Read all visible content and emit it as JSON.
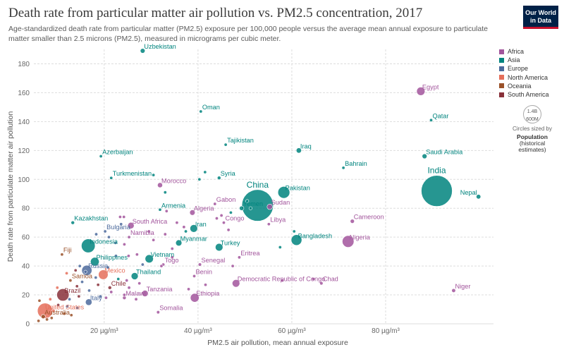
{
  "header": {
    "title": "Death rate from particular matter air pollution vs. PM2.5 concentration, 2017",
    "subtitle": "Age-standardized death rate from particular matter (PM2.5) exposure per 100,000 people versus the average mean annual exposure to particulate matter smaller than 2.5 microns (PM2.5), measured in micrograms per cubic meter.",
    "logo_line1": "Our World",
    "logo_line2": "in Data"
  },
  "legend": {
    "items": [
      {
        "label": "Africa",
        "color": "#a2559c"
      },
      {
        "label": "Asia",
        "color": "#00847e"
      },
      {
        "label": "Europe",
        "color": "#4c6a9c"
      },
      {
        "label": "North America",
        "color": "#e56e5a"
      },
      {
        "label": "Oceania",
        "color": "#9a5129"
      },
      {
        "label": "South America",
        "color": "#883039"
      }
    ],
    "size_circle_label": "1.4B",
    "size_circle_sub": "600M",
    "size_note": "Circles sized by",
    "size_pop1": "Population",
    "size_pop2": "(historical estimates)"
  },
  "chart_data": {
    "type": "scatter",
    "title": "Death rate from particular matter air pollution vs. PM2.5 concentration, 2017",
    "xlabel": "PM2.5 air pollution, mean annual exposure",
    "ylabel": "Death rate from particulate matter air pollution",
    "xlim": [
      5,
      103
    ],
    "ylim": [
      0,
      190
    ],
    "x_ticks": [
      {
        "v": 20,
        "label": "20 µg/m³"
      },
      {
        "v": 40,
        "label": "40 µg/m³"
      },
      {
        "v": 60,
        "label": "60 µg/m³"
      },
      {
        "v": 80,
        "label": "80 µg/m³"
      }
    ],
    "y_ticks": [
      0,
      20,
      40,
      60,
      80,
      100,
      120,
      140,
      160,
      180
    ],
    "grid": true,
    "legend_position": "right",
    "points": [
      {
        "label": "Uzbekistan",
        "x": 28.2,
        "y": 189,
        "c": "Asia",
        "pop": 32
      },
      {
        "label": "Egypt",
        "x": 87.5,
        "y": 161,
        "c": "Africa",
        "pop": 97
      },
      {
        "label": "Oman",
        "x": 40.6,
        "y": 147,
        "c": "Asia",
        "pop": 4.6
      },
      {
        "label": "Qatar",
        "x": 89.7,
        "y": 141,
        "c": "Asia",
        "pop": 2.6
      },
      {
        "label": "Tajikistan",
        "x": 45.9,
        "y": 124,
        "c": "Asia",
        "pop": 8.9
      },
      {
        "label": "Iraq",
        "x": 61.5,
        "y": 120,
        "c": "Asia",
        "pop": 38
      },
      {
        "label": "Saudi Arabia",
        "x": 88.3,
        "y": 116,
        "c": "Asia",
        "pop": 33
      },
      {
        "label": "Azerbaijan",
        "x": 19.3,
        "y": 116,
        "c": "Asia",
        "pop": 9.9
      },
      {
        "label": "Bahrain",
        "x": 71.0,
        "y": 108,
        "c": "Asia",
        "pop": 1.5
      },
      {
        "label": "Turkmenistan",
        "x": 21.5,
        "y": 101,
        "c": "Asia",
        "pop": 5.8
      },
      {
        "label": "Syria",
        "x": 44.5,
        "y": 101,
        "c": "Asia",
        "pop": 18
      },
      {
        "label": "Morocco",
        "x": 31.9,
        "y": 96,
        "c": "Africa",
        "pop": 36
      },
      {
        "label": "India",
        "x": 90.9,
        "y": 92,
        "c": "Asia",
        "pop": 1339
      },
      {
        "label": "China",
        "x": 52.7,
        "y": 82,
        "c": "Asia",
        "pop": 1386
      },
      {
        "label": "Pakistan",
        "x": 58.3,
        "y": 91,
        "c": "Asia",
        "pop": 197
      },
      {
        "label": "Nepal",
        "x": 99.8,
        "y": 88,
        "c": "Asia",
        "pop": 29
      },
      {
        "label": "Gabon",
        "x": 43.6,
        "y": 83,
        "c": "Africa",
        "pop": 2.0
      },
      {
        "label": "Yemen",
        "x": 49.3,
        "y": 80,
        "c": "Asia",
        "pop": 28
      },
      {
        "label": "Sudan",
        "x": 55.3,
        "y": 81,
        "c": "Africa",
        "pop": 41
      },
      {
        "label": "Armenia",
        "x": 31.9,
        "y": 79,
        "c": "Asia",
        "pop": 2.9
      },
      {
        "label": "Algeria",
        "x": 38.8,
        "y": 77,
        "c": "Africa",
        "pop": 41
      },
      {
        "label": "Congo",
        "x": 45.5,
        "y": 70,
        "c": "Africa",
        "pop": 5.3
      },
      {
        "label": "Cameroon",
        "x": 72.9,
        "y": 71,
        "c": "Africa",
        "pop": 24
      },
      {
        "label": "Libya",
        "x": 55.1,
        "y": 69,
        "c": "Africa",
        "pop": 6.4
      },
      {
        "label": "Kazakhstan",
        "x": 13.3,
        "y": 70,
        "c": "Asia",
        "pop": 18
      },
      {
        "label": "South Africa",
        "x": 25.7,
        "y": 68,
        "c": "Africa",
        "pop": 57
      },
      {
        "label": "Iran",
        "x": 39.1,
        "y": 66,
        "c": "Asia",
        "pop": 81
      },
      {
        "label": "Bulgaria",
        "x": 20.2,
        "y": 64,
        "c": "Europe",
        "pop": 7.1
      },
      {
        "label": "Bangladesh",
        "x": 61.0,
        "y": 58,
        "c": "Asia",
        "pop": 159
      },
      {
        "label": "Nigeria",
        "x": 72.0,
        "y": 57,
        "c": "Africa",
        "pop": 191
      },
      {
        "label": "Namibia",
        "x": 25.3,
        "y": 60,
        "c": "Africa",
        "pop": 2.5
      },
      {
        "label": "Myanmar",
        "x": 35.9,
        "y": 56,
        "c": "Asia",
        "pop": 53
      },
      {
        "label": "Indonesia",
        "x": 16.6,
        "y": 54,
        "c": "Asia",
        "pop": 264
      },
      {
        "label": "Turkey",
        "x": 44.5,
        "y": 53,
        "c": "Asia",
        "pop": 81
      },
      {
        "label": "Eritrea",
        "x": 48.8,
        "y": 46,
        "c": "Africa",
        "pop": 5.1
      },
      {
        "label": "Vietnam",
        "x": 29.6,
        "y": 45,
        "c": "Asia",
        "pop": 95
      },
      {
        "label": "Philippines",
        "x": 18.0,
        "y": 43,
        "c": "Asia",
        "pop": 105
      },
      {
        "label": "Fiji",
        "x": 11.0,
        "y": 48,
        "c": "Oceania",
        "pop": 0.9
      },
      {
        "label": "Togo",
        "x": 32.6,
        "y": 41,
        "c": "Africa",
        "pop": 7.8
      },
      {
        "label": "Senegal",
        "x": 40.4,
        "y": 41,
        "c": "Africa",
        "pop": 15
      },
      {
        "label": "Russia",
        "x": 16.3,
        "y": 37,
        "c": "Europe",
        "pop": 145
      },
      {
        "label": "Mexico",
        "x": 19.8,
        "y": 34,
        "c": "North America",
        "pop": 129
      },
      {
        "label": "Thailand",
        "x": 26.5,
        "y": 33,
        "c": "Asia",
        "pop": 69
      },
      {
        "label": "Benin",
        "x": 39.2,
        "y": 33,
        "c": "Africa",
        "pop": 11
      },
      {
        "label": "Samoa",
        "x": 12.8,
        "y": 30,
        "c": "Oceania",
        "pop": 0.2
      },
      {
        "label": "Democratic Republic of Congo",
        "x": 48.1,
        "y": 28,
        "c": "Africa",
        "pop": 81
      },
      {
        "label": "Chad",
        "x": 66.3,
        "y": 28,
        "c": "Africa",
        "pop": 15
      },
      {
        "label": "Chile",
        "x": 21.2,
        "y": 25,
        "c": "South America",
        "pop": 18
      },
      {
        "label": "Brazil",
        "x": 11.2,
        "y": 20,
        "c": "South America",
        "pop": 209
      },
      {
        "label": "Niger",
        "x": 94.5,
        "y": 23,
        "c": "Africa",
        "pop": 21
      },
      {
        "label": "Tanzania",
        "x": 28.7,
        "y": 21,
        "c": "Africa",
        "pop": 57
      },
      {
        "label": "Ethiopia",
        "x": 39.3,
        "y": 18,
        "c": "Africa",
        "pop": 106
      },
      {
        "label": "Italy",
        "x": 16.7,
        "y": 15,
        "c": "Europe",
        "pop": 60
      },
      {
        "label": "Malawi",
        "x": 24.3,
        "y": 18,
        "c": "Africa",
        "pop": 18
      },
      {
        "label": "Somalia",
        "x": 31.5,
        "y": 8,
        "c": "Africa",
        "pop": 14
      },
      {
        "label": "United States",
        "x": 7.4,
        "y": 9,
        "c": "North America",
        "pop": 325
      },
      {
        "label": "Australia",
        "x": 7.0,
        "y": 5,
        "c": "Oceania",
        "pop": 25
      },
      {
        "label": "",
        "x": 30.5,
        "y": 103,
        "c": "Asia",
        "pop": 3
      },
      {
        "label": "",
        "x": 41.5,
        "y": 105,
        "c": "Asia",
        "pop": 4
      },
      {
        "label": "",
        "x": 40.3,
        "y": 100,
        "c": "Asia",
        "pop": 3
      },
      {
        "label": "",
        "x": 33.0,
        "y": 91,
        "c": "Asia",
        "pop": 2
      },
      {
        "label": "",
        "x": 33.3,
        "y": 78,
        "c": "Africa",
        "pop": 3
      },
      {
        "label": "",
        "x": 50.5,
        "y": 85,
        "c": "Asia",
        "pop": 2
      },
      {
        "label": "",
        "x": 51.2,
        "y": 80,
        "c": "Asia",
        "pop": 4
      },
      {
        "label": "",
        "x": 47.0,
        "y": 77,
        "c": "Asia",
        "pop": 2
      },
      {
        "label": "",
        "x": 45.0,
        "y": 75,
        "c": "Africa",
        "pop": 2
      },
      {
        "label": "",
        "x": 44.0,
        "y": 73,
        "c": "Africa",
        "pop": 2
      },
      {
        "label": "",
        "x": 35.5,
        "y": 70,
        "c": "Africa",
        "pop": 2
      },
      {
        "label": "",
        "x": 37.0,
        "y": 67,
        "c": "Africa",
        "pop": 2
      },
      {
        "label": "",
        "x": 46.5,
        "y": 65,
        "c": "Africa",
        "pop": 2
      },
      {
        "label": "",
        "x": 37.4,
        "y": 64,
        "c": "Asia",
        "pop": 2
      },
      {
        "label": "",
        "x": 33.0,
        "y": 62,
        "c": "Africa",
        "pop": 2
      },
      {
        "label": "",
        "x": 29.5,
        "y": 64,
        "c": "Africa",
        "pop": 2
      },
      {
        "label": "",
        "x": 23.4,
        "y": 74,
        "c": "Africa",
        "pop": 2
      },
      {
        "label": "",
        "x": 24.2,
        "y": 74,
        "c": "Africa",
        "pop": 2
      },
      {
        "label": "",
        "x": 23.6,
        "y": 69,
        "c": "Europe",
        "pop": 2
      },
      {
        "label": "",
        "x": 18.3,
        "y": 62,
        "c": "Europe",
        "pop": 2
      },
      {
        "label": "",
        "x": 21.0,
        "y": 60,
        "c": "Europe",
        "pop": 2
      },
      {
        "label": "",
        "x": 22.4,
        "y": 56,
        "c": "Europe",
        "pop": 2
      },
      {
        "label": "",
        "x": 24.3,
        "y": 55,
        "c": "Africa",
        "pop": 2
      },
      {
        "label": "",
        "x": 30.5,
        "y": 58,
        "c": "Africa",
        "pop": 2
      },
      {
        "label": "",
        "x": 34.5,
        "y": 52,
        "c": "Africa",
        "pop": 2
      },
      {
        "label": "",
        "x": 57.5,
        "y": 53,
        "c": "Asia",
        "pop": 2
      },
      {
        "label": "",
        "x": 60.5,
        "y": 64,
        "c": "Asia",
        "pop": 2
      },
      {
        "label": "",
        "x": 22.5,
        "y": 47,
        "c": "Europe",
        "pop": 2
      },
      {
        "label": "",
        "x": 25.2,
        "y": 47,
        "c": "Africa",
        "pop": 2
      },
      {
        "label": "",
        "x": 27.0,
        "y": 48,
        "c": "Africa",
        "pop": 2
      },
      {
        "label": "",
        "x": 34.5,
        "y": 46,
        "c": "Africa",
        "pop": 2
      },
      {
        "label": "",
        "x": 28.2,
        "y": 41,
        "c": "Europe",
        "pop": 2
      },
      {
        "label": "",
        "x": 32.2,
        "y": 40,
        "c": "Africa",
        "pop": 2
      },
      {
        "label": "",
        "x": 47.4,
        "y": 40,
        "c": "Africa",
        "pop": 2
      },
      {
        "label": "",
        "x": 14.8,
        "y": 40,
        "c": "Europe",
        "pop": 2
      },
      {
        "label": "",
        "x": 20.8,
        "y": 39,
        "c": "Europe",
        "pop": 2
      },
      {
        "label": "",
        "x": 13.9,
        "y": 37,
        "c": "South America",
        "pop": 2
      },
      {
        "label": "",
        "x": 12.0,
        "y": 35,
        "c": "North America",
        "pop": 2
      },
      {
        "label": "",
        "x": 16.0,
        "y": 36,
        "c": "Europe",
        "pop": 2
      },
      {
        "label": "",
        "x": 18.2,
        "y": 32,
        "c": "Europe",
        "pop": 2
      },
      {
        "label": "",
        "x": 23.0,
        "y": 31,
        "c": "Asia",
        "pop": 2
      },
      {
        "label": "",
        "x": 24.8,
        "y": 30,
        "c": "Africa",
        "pop": 2
      },
      {
        "label": "",
        "x": 27.5,
        "y": 28,
        "c": "Africa",
        "pop": 2
      },
      {
        "label": "",
        "x": 15.3,
        "y": 29,
        "c": "Europe",
        "pop": 2
      },
      {
        "label": "",
        "x": 14.2,
        "y": 26,
        "c": "South America",
        "pop": 2
      },
      {
        "label": "",
        "x": 18.7,
        "y": 27,
        "c": "South America",
        "pop": 3
      },
      {
        "label": "",
        "x": 10.0,
        "y": 25,
        "c": "North America",
        "pop": 2
      },
      {
        "label": "",
        "x": 16.8,
        "y": 23,
        "c": "Europe",
        "pop": 2
      },
      {
        "label": "",
        "x": 21.5,
        "y": 22,
        "c": "Africa",
        "pop": 2
      },
      {
        "label": "",
        "x": 25.3,
        "y": 25,
        "c": "Africa",
        "pop": 2
      },
      {
        "label": "",
        "x": 24.3,
        "y": 20,
        "c": "Africa",
        "pop": 2
      },
      {
        "label": "",
        "x": 38.0,
        "y": 24,
        "c": "Africa",
        "pop": 2
      },
      {
        "label": "",
        "x": 41.6,
        "y": 27,
        "c": "Africa",
        "pop": 2
      },
      {
        "label": "",
        "x": 58.0,
        "y": 30,
        "c": "Africa",
        "pop": 2
      },
      {
        "label": "",
        "x": 64.6,
        "y": 31,
        "c": "Africa",
        "pop": 2
      },
      {
        "label": "",
        "x": 8.5,
        "y": 17,
        "c": "North America",
        "pop": 2
      },
      {
        "label": "",
        "x": 12.6,
        "y": 17,
        "c": "Europe",
        "pop": 2
      },
      {
        "label": "",
        "x": 14.6,
        "y": 19,
        "c": "South America",
        "pop": 2
      },
      {
        "label": "",
        "x": 19.2,
        "y": 19,
        "c": "Europe",
        "pop": 2
      },
      {
        "label": "",
        "x": 20.4,
        "y": 18,
        "c": "Africa",
        "pop": 2
      },
      {
        "label": "",
        "x": 26.8,
        "y": 17,
        "c": "Africa",
        "pop": 2
      },
      {
        "label": "",
        "x": 6.2,
        "y": 16,
        "c": "Oceania",
        "pop": 2
      },
      {
        "label": "",
        "x": 10.2,
        "y": 13,
        "c": "South America",
        "pop": 2
      },
      {
        "label": "",
        "x": 12.1,
        "y": 12,
        "c": "Europe",
        "pop": 2
      },
      {
        "label": "",
        "x": 14.3,
        "y": 11,
        "c": "Europe",
        "pop": 2
      },
      {
        "label": "",
        "x": 9.2,
        "y": 9,
        "c": "North America",
        "pop": 2
      },
      {
        "label": "",
        "x": 11.5,
        "y": 7,
        "c": "Oceania",
        "pop": 2
      },
      {
        "label": "",
        "x": 13.0,
        "y": 6,
        "c": "Oceania",
        "pop": 2
      },
      {
        "label": "",
        "x": 7.8,
        "y": 3,
        "c": "Oceania",
        "pop": 2
      },
      {
        "label": "",
        "x": 6.0,
        "y": 2,
        "c": "Oceania",
        "pop": 2
      },
      {
        "label": "",
        "x": 8.8,
        "y": 4,
        "c": "Oceania",
        "pop": 2
      }
    ]
  }
}
